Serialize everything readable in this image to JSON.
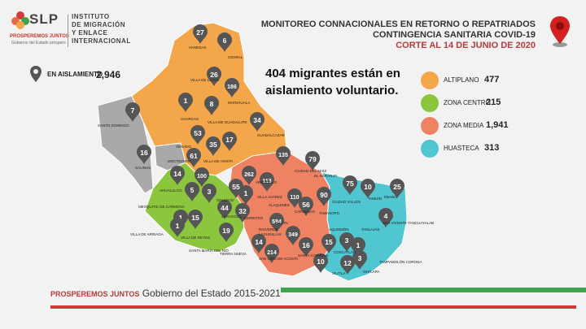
{
  "header": {
    "logo_letters": "SLP",
    "logo_tagline": "PROSPEREMOS JUNTOS",
    "logo_sub": "Gobierno del Estado próspero",
    "institute": [
      "INSTITUTO",
      "DE MIGRACIÓN",
      "Y ENLACE",
      "INTERNACIONAL"
    ],
    "title_line1": "MONITOREO CONNACIONALES EN RETORNO O REPATRIADOS",
    "title_line2": "CONTINGENCIA SANITARIA COVID-19",
    "title_line3": "CORTE AL 14 DE JUNIO DE 2020"
  },
  "isolation": {
    "label": "EN AISLAMIENTO",
    "value": "2,946"
  },
  "headline": "404 migrantes están en aislamiento voluntario.",
  "legend": [
    {
      "label": "ALTIPLANO",
      "value": "477",
      "color": "#f4a64a"
    },
    {
      "label": "ZONA CENTRO",
      "value": "215",
      "color": "#8cc63f"
    },
    {
      "label": "ZONA MEDIA",
      "value": "1,941",
      "color": "#ee8262"
    },
    {
      "label": "HUASTECA",
      "value": "313",
      "color": "#4fc6d0"
    }
  ],
  "colors": {
    "altiplano": "#f4a64a",
    "centro": "#8cc63f",
    "media": "#ee8262",
    "huasteca": "#4fc6d0",
    "no_data": "#a9a9a9",
    "pin": "#555555"
  },
  "map_markers": [
    {
      "value": "27",
      "region": "altiplano"
    },
    {
      "value": "6",
      "region": "altiplano"
    },
    {
      "value": "26",
      "region": "altiplano"
    },
    {
      "value": "186",
      "region": "altiplano"
    },
    {
      "value": "1",
      "region": "altiplano"
    },
    {
      "value": "8",
      "region": "altiplano"
    },
    {
      "value": "7",
      "region": "altiplano"
    },
    {
      "value": "34",
      "region": "altiplano"
    },
    {
      "value": "53",
      "region": "altiplano"
    },
    {
      "value": "17",
      "region": "altiplano"
    },
    {
      "value": "35",
      "region": "altiplano"
    },
    {
      "value": "61",
      "region": "altiplano"
    },
    {
      "value": "16",
      "region": "altiplano"
    },
    {
      "value": "14",
      "region": "centro"
    },
    {
      "value": "100",
      "region": "centro"
    },
    {
      "value": "5",
      "region": "centro"
    },
    {
      "value": "3",
      "region": "centro"
    },
    {
      "value": "55",
      "region": "media"
    },
    {
      "value": "262",
      "region": "media"
    },
    {
      "value": "135",
      "region": "media"
    },
    {
      "value": "79",
      "region": "media"
    },
    {
      "value": "113",
      "region": "media"
    },
    {
      "value": "110",
      "region": "media"
    },
    {
      "value": "32",
      "region": "media"
    },
    {
      "value": "44",
      "region": "centro"
    },
    {
      "value": "1",
      "region": "centro"
    },
    {
      "value": "15",
      "region": "centro"
    },
    {
      "value": "19",
      "region": "centro"
    },
    {
      "value": "584",
      "region": "media"
    },
    {
      "value": "56",
      "region": "media"
    },
    {
      "value": "90",
      "region": "huasteca"
    },
    {
      "value": "75",
      "region": "huasteca"
    },
    {
      "value": "10",
      "region": "huasteca"
    },
    {
      "value": "25",
      "region": "huasteca"
    },
    {
      "value": "4",
      "region": "huasteca"
    },
    {
      "value": "349",
      "region": "media"
    },
    {
      "value": "14",
      "region": "media"
    },
    {
      "value": "16",
      "region": "media"
    },
    {
      "value": "214",
      "region": "media"
    },
    {
      "value": "10",
      "region": "media"
    },
    {
      "value": "15",
      "region": "huasteca"
    },
    {
      "value": "3",
      "region": "huasteca"
    },
    {
      "value": "1",
      "region": "huasteca"
    },
    {
      "value": "3",
      "region": "huasteca"
    },
    {
      "value": "12",
      "region": "huasteca"
    },
    {
      "value": "1",
      "region": "huasteca"
    },
    {
      "value": "1",
      "region": "huasteca"
    }
  ],
  "map_labels": [
    "VANEGAS",
    "CEDRAL",
    "VILLA DE LA PAZ",
    "MATEHUALA",
    "SANTO DOMINGO",
    "CHARCAS",
    "VILLA DE GUADALUPE",
    "GUADALCAZAR",
    "VENADO",
    "MOCTEZUMA",
    "VILLA DE ARISTA",
    "SALINAS",
    "AHUALULCO",
    "MEXQUITIC DE CARMONA",
    "VILLA DE ARRIAGA",
    "VILLA DE REYES",
    "SANTA MARÍA DEL RÍO",
    "TIERRA NUEVA",
    "VILLA JUÁREZ",
    "CIUDAD DEL MAÍZ",
    "EL NARANJO",
    "ALAQUINES",
    "CÁRDENAS",
    "RAYÓN",
    "LAGUNILLAS",
    "SANTA CATARINA",
    "TAMASOPO",
    "CIUDAD VALLES",
    "TAMUÍN",
    "ÉBANO",
    "SAN VICENTE TANCUAYALAB",
    "TANLAJÁS",
    "AQUISMÓN",
    "COXCATLÁN",
    "XILITLA",
    "MATLAPA",
    "TAMPAMOLÓN CORONA",
    "RIOVERDE",
    "SAN CIRO DE ACOSTA",
    "CERRITOS",
    "ARMADILLO",
    "ZARAGOZA",
    "SOLEDAD"
  ],
  "footer": {
    "brand": "PROSPEREMOS JUNTOS",
    "text": "Gobierno del Estado 2015-2021"
  }
}
